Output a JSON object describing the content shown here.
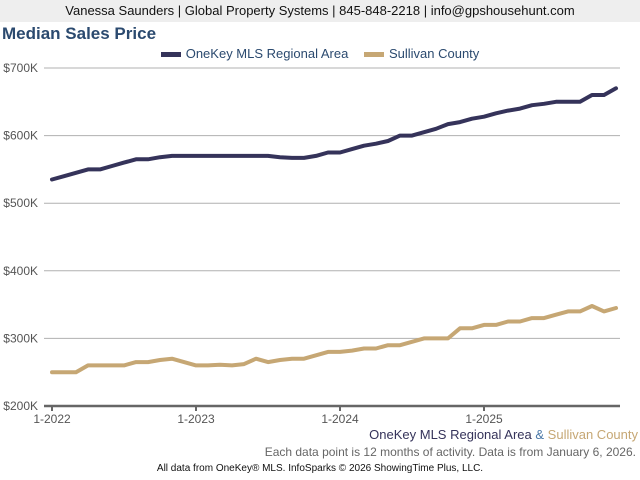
{
  "header": {
    "text": "Vanessa Saunders | Global Property Systems | 845-848-2218 | info@gpshousehunt.com"
  },
  "chart_data": {
    "type": "line",
    "title": "Median Sales Price",
    "legend_placement": "top",
    "grid": true,
    "ylim": [
      200000,
      700000
    ],
    "y_ticks": [
      "$200K",
      "$300K",
      "$400K",
      "$500K",
      "$600K",
      "$700K"
    ],
    "y_tick_values": [
      200000,
      300000,
      400000,
      500000,
      600000,
      700000
    ],
    "x_ticks": [
      "1-2022",
      "1-2023",
      "1-2024",
      "1-2025"
    ],
    "x_start": "2022-01",
    "x_step": "month",
    "series": [
      {
        "name": "OneKey MLS Regional Area",
        "color": "#35335a",
        "values": [
          535000,
          540000,
          545000,
          550000,
          550000,
          555000,
          560000,
          565000,
          565000,
          568000,
          570000,
          570000,
          570000,
          570000,
          570000,
          570000,
          570000,
          570000,
          570000,
          568000,
          567000,
          567000,
          570000,
          575000,
          575000,
          580000,
          585000,
          588000,
          592000,
          600000,
          600000,
          605000,
          610000,
          617000,
          620000,
          625000,
          628000,
          633000,
          637000,
          640000,
          645000,
          647000,
          650000,
          650000,
          650000,
          660000,
          660000,
          670000
        ]
      },
      {
        "name": "Sullivan County",
        "color": "#c6a774",
        "values": [
          250000,
          250000,
          250000,
          260000,
          260000,
          260000,
          260000,
          265000,
          265000,
          268000,
          270000,
          265000,
          260000,
          260000,
          261000,
          260000,
          262000,
          270000,
          265000,
          268000,
          270000,
          270000,
          275000,
          280000,
          280000,
          282000,
          285000,
          285000,
          290000,
          290000,
          295000,
          300000,
          300000,
          300000,
          315000,
          315000,
          320000,
          320000,
          325000,
          325000,
          330000,
          330000,
          335000,
          340000,
          340000,
          348000,
          340000,
          345000
        ]
      }
    ]
  },
  "bottom_legend": {
    "a": "OneKey MLS Regional Area",
    "amp": " & ",
    "b": "Sullivan County"
  },
  "note": "Each data point is 12 months of activity. Data is from January 6, 2026.",
  "footer": "All data from OneKey® MLS. InfoSparks © 2026 ShowingTime Plus, LLC."
}
